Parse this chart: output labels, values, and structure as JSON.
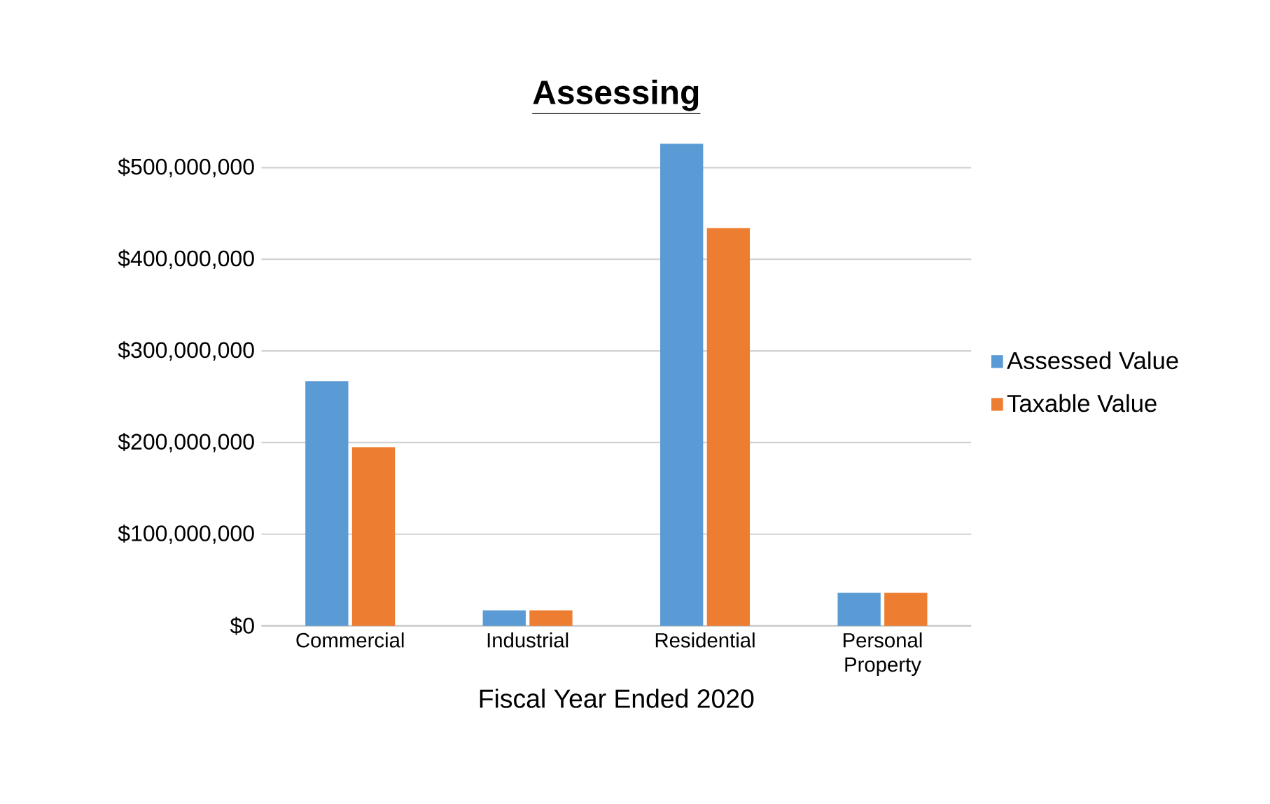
{
  "chart_data": {
    "type": "bar",
    "title": "Assessing",
    "xlabel": "Fiscal Year Ended 2020",
    "categories": [
      "Commercial",
      "Industrial",
      "Residential",
      "Personal Property"
    ],
    "series": [
      {
        "name": "Assessed Value",
        "color": "#5b9bd5",
        "values": [
          267000000,
          17000000,
          526000000,
          36000000
        ]
      },
      {
        "name": "Taxable Value",
        "color": "#ed7d31",
        "values": [
          195000000,
          17000000,
          434000000,
          36000000
        ]
      }
    ],
    "ylim": [
      0,
      530000000
    ],
    "yticks": [
      {
        "value": 0,
        "label": "$0"
      },
      {
        "value": 100000000,
        "label": "$100,000,000"
      },
      {
        "value": 200000000,
        "label": "$200,000,000"
      },
      {
        "value": 300000000,
        "label": "$300,000,000"
      },
      {
        "value": 400000000,
        "label": "$400,000,000"
      },
      {
        "value": 500000000,
        "label": "$500,000,000"
      }
    ],
    "grid": "y",
    "legend": "right"
  }
}
